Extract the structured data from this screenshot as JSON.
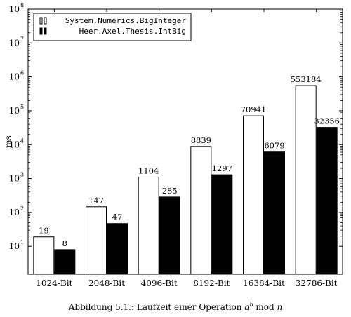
{
  "chart_data": {
    "type": "bar",
    "scale": "log",
    "categories": [
      "1024-Bit",
      "2048-Bit",
      "4096-Bit",
      "8192-Bit",
      "16384-Bit",
      "32786-Bit"
    ],
    "series": [
      {
        "name": "System.Numerics.BigInteger",
        "values": [
          19,
          147,
          1104,
          8839,
          70941,
          553184
        ],
        "fill": "#ffffff"
      },
      {
        "name": "Heer.Axel.Thesis.IntBig",
        "values": [
          8,
          47,
          285,
          1297,
          6079,
          32356
        ],
        "fill": "#000000"
      }
    ],
    "ylabel": "ms",
    "ylim": [
      1.5,
      100000000
    ],
    "y_ticks": [
      1,
      2,
      3,
      4,
      5,
      6,
      7,
      8
    ],
    "y_tick_base": "10",
    "legend_position": "top-left",
    "grid": false
  },
  "caption": {
    "prefix": "Abbildung 5.1.: Laufzeit einer Operation ",
    "base": "a",
    "exponent": "b",
    "mod": " mod ",
    "modulus": "n"
  }
}
